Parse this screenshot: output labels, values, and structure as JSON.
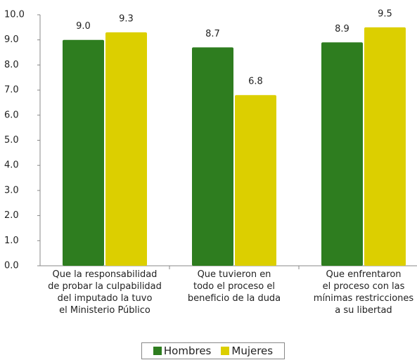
{
  "chart_data": {
    "type": "bar",
    "categories": [
      "Que la responsabilidad\nde probar la culpabilidad\ndel imputado la tuvo\nel Ministerio Público",
      "Que tuvieron en\ntodo el proceso el\nbeneficio de la duda",
      "Que enfrentaron\nel proceso con las\nmínimas restricciones\na su libertad"
    ],
    "series": [
      {
        "name": "Hombres",
        "color": "#2e7d1f",
        "values": [
          9.0,
          8.7,
          8.9
        ],
        "value_labels": [
          "9.0",
          "8.7",
          "8.9"
        ]
      },
      {
        "name": "Mujeres",
        "color": "#dccf00",
        "values": [
          9.3,
          6.8,
          9.5
        ],
        "value_labels": [
          "9.3",
          "6.8",
          "9.5"
        ]
      }
    ],
    "ylim": [
      0,
      10
    ],
    "yticks": [
      {
        "value": 0,
        "label": "0.0"
      },
      {
        "value": 1,
        "label": "1.0"
      },
      {
        "value": 2,
        "label": "2.0"
      },
      {
        "value": 3,
        "label": "3.0"
      },
      {
        "value": 4,
        "label": "4.0"
      },
      {
        "value": 5,
        "label": "5.0"
      },
      {
        "value": 6,
        "label": "6.0"
      },
      {
        "value": 7,
        "label": "7.0"
      },
      {
        "value": 8,
        "label": "8.0"
      },
      {
        "value": 9,
        "label": "9.0"
      },
      {
        "value": 10,
        "label": "10.0"
      }
    ],
    "legend": "bottom"
  }
}
